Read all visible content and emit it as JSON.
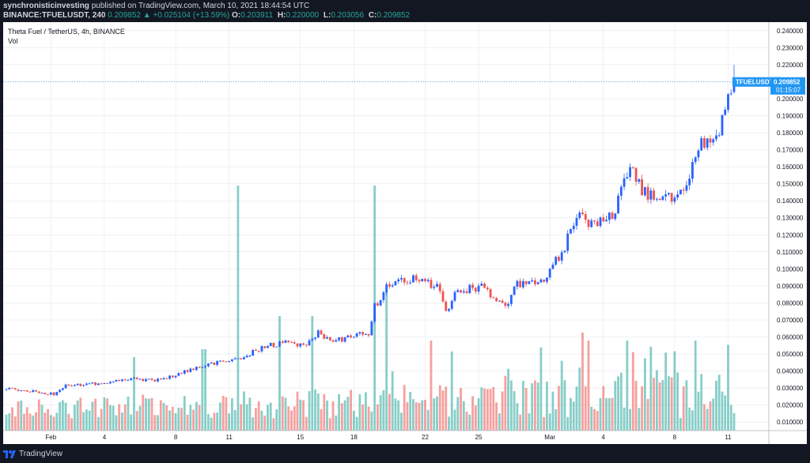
{
  "header": {
    "author": "synchronisticinvesting",
    "published": "published on TradingView.com, March 10, 2021 18:44:54 UTC",
    "symbol": "BINANCE:TFUELUSDT, 240",
    "last": "0.209852",
    "change": "▲ +0.025104 (+13.59%)",
    "ohlc": [
      {
        "label": "O:",
        "value": "0.203911"
      },
      {
        "label": "H:",
        "value": "0.220000"
      },
      {
        "label": "L:",
        "value": "0.203056"
      },
      {
        "label": "C:",
        "value": "0.209852"
      }
    ]
  },
  "chart_title": {
    "pair": "Theta Fuel / TetherUS, 4h, BINANCE",
    "vol": "Vol"
  },
  "footer": {
    "brand": "TradingView"
  },
  "colors": {
    "background": "#131722",
    "panel": "#ffffff",
    "up": "#2962ff",
    "down": "#ef5350",
    "vol_up": "#26a69a",
    "vol_down": "#ef5350",
    "price_line": "#2196f3",
    "grid": "#e0e3eb",
    "text": "#131722"
  },
  "chart_data": {
    "type": "candlestick",
    "title": "Theta Fuel / TetherUS, 4h, BINANCE",
    "ylim": [
      0.005,
      0.245
    ],
    "y_ticks": [
      "0.240000",
      "0.230000",
      "0.220000",
      "0.210000",
      "0.200000",
      "0.190000",
      "0.180000",
      "0.170000",
      "0.160000",
      "0.150000",
      "0.140000",
      "0.130000",
      "0.120000",
      "0.110000",
      "0.100000",
      "0.090000",
      "0.080000",
      "0.070000",
      "0.060000",
      "0.050000",
      "0.040000",
      "0.030000",
      "0.020000",
      "0.010000"
    ],
    "x_ticks": [
      {
        "label": "Feb",
        "index": 15
      },
      {
        "label": "4",
        "index": 33
      },
      {
        "label": "8",
        "index": 57
      },
      {
        "label": "11",
        "index": 75
      },
      {
        "label": "15",
        "index": 99
      },
      {
        "label": "18",
        "index": 117
      },
      {
        "label": "22",
        "index": 141
      },
      {
        "label": "25",
        "index": 159
      },
      {
        "label": "Mar",
        "index": 183
      },
      {
        "label": "4",
        "index": 201
      },
      {
        "label": "8",
        "index": 225
      },
      {
        "label": "11",
        "index": 243
      }
    ],
    "last_price": {
      "label": "TFUELUSDT",
      "value": "0.209852",
      "countdown": "01:15:07",
      "y": 0.209852
    },
    "close_anchors": [
      [
        0,
        0.0295
      ],
      [
        8,
        0.0283
      ],
      [
        16,
        0.0265
      ],
      [
        20,
        0.0315
      ],
      [
        30,
        0.0325
      ],
      [
        40,
        0.0355
      ],
      [
        52,
        0.0345
      ],
      [
        60,
        0.0395
      ],
      [
        70,
        0.0445
      ],
      [
        78,
        0.0475
      ],
      [
        88,
        0.0545
      ],
      [
        95,
        0.0575
      ],
      [
        100,
        0.0545
      ],
      [
        105,
        0.0625
      ],
      [
        110,
        0.0575
      ],
      [
        122,
        0.0625
      ],
      [
        124,
        0.0775
      ],
      [
        128,
        0.0885
      ],
      [
        135,
        0.0945
      ],
      [
        145,
        0.0905
      ],
      [
        148,
        0.0735
      ],
      [
        152,
        0.0875
      ],
      [
        160,
        0.0895
      ],
      [
        168,
        0.0775
      ],
      [
        172,
        0.0905
      ],
      [
        180,
        0.0925
      ],
      [
        188,
        0.1125
      ],
      [
        192,
        0.1335
      ],
      [
        198,
        0.1245
      ],
      [
        205,
        0.1345
      ],
      [
        210,
        0.1625
      ],
      [
        214,
        0.1445
      ],
      [
        220,
        0.1415
      ],
      [
        228,
        0.1435
      ],
      [
        234,
        0.1745
      ],
      [
        238,
        0.1725
      ],
      [
        242,
        0.1905
      ],
      [
        245,
        0.2099
      ]
    ],
    "volume": {
      "ylim": [
        0,
        0.0667
      ],
      "spikes": [
        {
          "index": 43,
          "value": 0.012
        },
        {
          "index": 66,
          "value": 0.0133
        },
        {
          "index": 67,
          "value": 0.0133
        },
        {
          "index": 78,
          "value": 0.04
        },
        {
          "index": 92,
          "value": 0.0187
        },
        {
          "index": 103,
          "value": 0.0187
        },
        {
          "index": 124,
          "value": 0.04
        },
        {
          "index": 128,
          "value": 0.0227
        },
        {
          "index": 143,
          "value": 0.0147
        },
        {
          "index": 194,
          "value": 0.016
        },
        {
          "index": 196,
          "value": 0.0147
        },
        {
          "index": 209,
          "value": 0.0147
        },
        {
          "index": 232,
          "value": 0.0147
        }
      ]
    }
  }
}
